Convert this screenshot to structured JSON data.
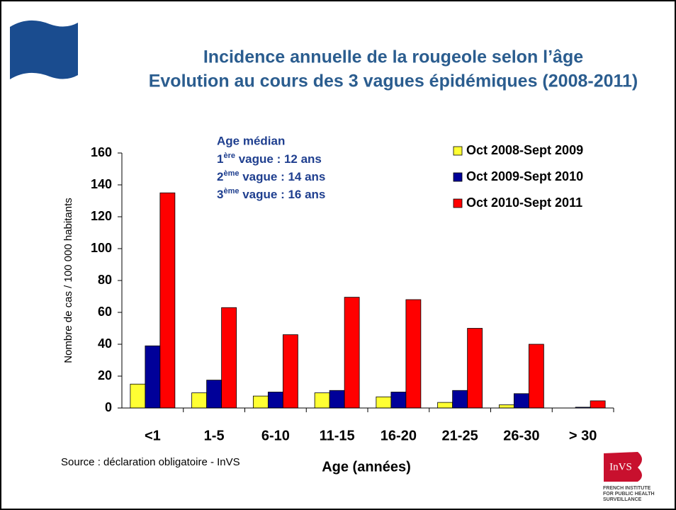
{
  "chart_data": {
    "type": "bar",
    "title": [
      "Incidence annuelle de la rougeole selon l’âge",
      "Evolution au cours des 3 vagues épidémiques (2008-2011)"
    ],
    "categories": [
      "<1",
      "1-5",
      "6-10",
      "11-15",
      "16-20",
      "21-25",
      "26-30",
      "> 30"
    ],
    "series": [
      {
        "name": "Oct 2008-Sept 2009",
        "color": "#ffff33",
        "values": [
          15,
          9.5,
          7.5,
          9.5,
          7,
          3.5,
          2,
          0
        ]
      },
      {
        "name": "Oct 2009-Sept 2010",
        "color": "#000099",
        "values": [
          39,
          17.5,
          10,
          11,
          10,
          11,
          9,
          0.5
        ]
      },
      {
        "name": "Oct 2010-Sept 2011",
        "color": "#ff0000",
        "values": [
          135,
          63,
          46,
          69.5,
          68,
          50,
          40,
          4.5
        ]
      }
    ],
    "ylim": [
      0,
      160
    ],
    "yticks": [
      0,
      20,
      40,
      60,
      80,
      100,
      120,
      140,
      160
    ],
    "ylabel": "Nombre de cas / 100 000 habitants",
    "xlabel": "Age (années)",
    "annotation": {
      "heading": "Age médian",
      "lines": [
        {
          "num": "1",
          "sup": "ère",
          "text": " vague : 12 ans"
        },
        {
          "num": "2",
          "sup": "ème",
          "text": " vague : 14 ans"
        },
        {
          "num": "3",
          "sup": "ème",
          "text": " vague : 16 ans"
        }
      ]
    },
    "source": "Source : déclaration obligatoire - InVS",
    "logo": {
      "name": "InVS",
      "lines": [
        "FRENCH INSTITUTE",
        "FOR PUBLIC HEALTH",
        "SURVEILLANCE"
      ]
    }
  }
}
